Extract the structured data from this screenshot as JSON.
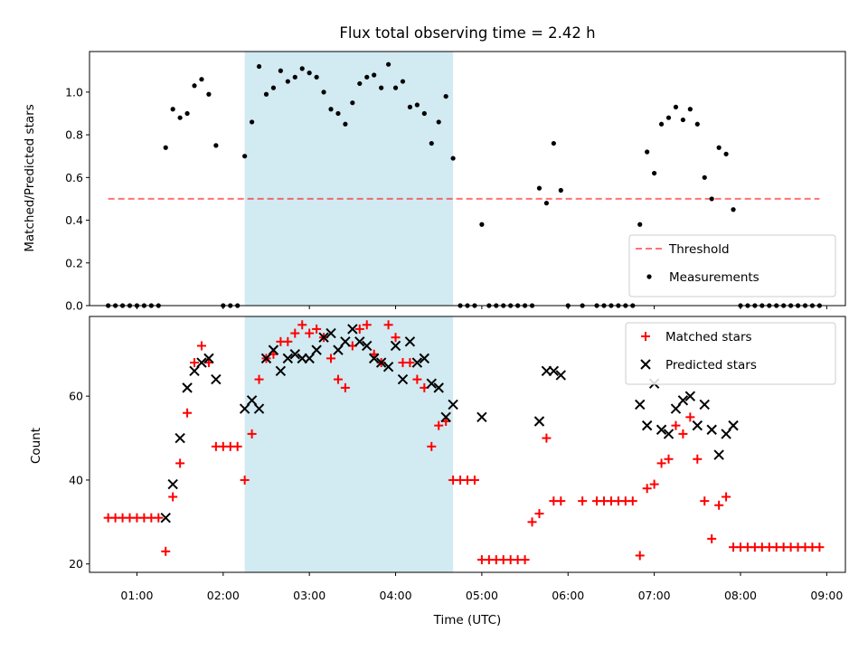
{
  "chart_data": [
    {
      "type": "scatter",
      "title": "Flux total observing time = 2.42 h",
      "xlabel": "",
      "ylabel": "Matched/Predicted stars",
      "xlim": [
        "00:27",
        "09:13"
      ],
      "ylim": [
        0,
        1.19
      ],
      "yticks": [
        0.0,
        0.2,
        0.4,
        0.6,
        0.8,
        1.0
      ],
      "ytick_labels": [
        "0.0",
        "0.2",
        "0.4",
        "0.6",
        "0.8",
        "1.0"
      ],
      "shaded_region": [
        "02:15",
        "04:40"
      ],
      "shade_color": "#add8e6",
      "legend_position": "lower right",
      "series": [
        {
          "name": "Threshold",
          "kind": "dashed-line",
          "color": "#ff0000",
          "points": [
            [
              "00:40",
              0.5
            ],
            [
              "08:55",
              0.5
            ]
          ]
        },
        {
          "name": "Measurements",
          "kind": "dot",
          "color": "#000000",
          "points": [
            [
              "00:40",
              0.0
            ],
            [
              "00:45",
              0.0
            ],
            [
              "00:50",
              0.0
            ],
            [
              "00:55",
              0.0
            ],
            [
              "01:00",
              0.0
            ],
            [
              "01:05",
              0.0
            ],
            [
              "01:10",
              0.0
            ],
            [
              "01:15",
              0.0
            ],
            [
              "01:20",
              0.74
            ],
            [
              "01:25",
              0.92
            ],
            [
              "01:30",
              0.88
            ],
            [
              "01:35",
              0.9
            ],
            [
              "01:40",
              1.03
            ],
            [
              "01:45",
              1.06
            ],
            [
              "01:50",
              0.99
            ],
            [
              "01:55",
              0.75
            ],
            [
              "02:00",
              0.0
            ],
            [
              "02:05",
              0.0
            ],
            [
              "02:10",
              0.0
            ],
            [
              "02:15",
              0.7
            ],
            [
              "02:20",
              0.86
            ],
            [
              "02:25",
              1.12
            ],
            [
              "02:30",
              0.99
            ],
            [
              "02:35",
              1.02
            ],
            [
              "02:40",
              1.1
            ],
            [
              "02:45",
              1.05
            ],
            [
              "02:50",
              1.07
            ],
            [
              "02:55",
              1.11
            ],
            [
              "03:00",
              1.09
            ],
            [
              "03:05",
              1.07
            ],
            [
              "03:10",
              1.0
            ],
            [
              "03:15",
              0.92
            ],
            [
              "03:20",
              0.9
            ],
            [
              "03:25",
              0.85
            ],
            [
              "03:30",
              0.95
            ],
            [
              "03:35",
              1.04
            ],
            [
              "03:40",
              1.07
            ],
            [
              "03:45",
              1.08
            ],
            [
              "03:50",
              1.02
            ],
            [
              "03:55",
              1.13
            ],
            [
              "04:00",
              1.02
            ],
            [
              "04:05",
              1.05
            ],
            [
              "04:10",
              0.93
            ],
            [
              "04:15",
              0.94
            ],
            [
              "04:20",
              0.9
            ],
            [
              "04:25",
              0.76
            ],
            [
              "04:30",
              0.86
            ],
            [
              "04:35",
              0.98
            ],
            [
              "04:40",
              0.69
            ],
            [
              "04:45",
              0.0
            ],
            [
              "04:50",
              0.0
            ],
            [
              "04:55",
              0.0
            ],
            [
              "05:00",
              0.38
            ],
            [
              "05:05",
              0.0
            ],
            [
              "05:10",
              0.0
            ],
            [
              "05:15",
              0.0
            ],
            [
              "05:20",
              0.0
            ],
            [
              "05:25",
              0.0
            ],
            [
              "05:30",
              0.0
            ],
            [
              "05:35",
              0.0
            ],
            [
              "05:40",
              0.55
            ],
            [
              "05:45",
              0.48
            ],
            [
              "05:50",
              0.76
            ],
            [
              "05:55",
              0.54
            ],
            [
              "06:00",
              0.0
            ],
            [
              "06:10",
              0.0
            ],
            [
              "06:20",
              0.0
            ],
            [
              "06:25",
              0.0
            ],
            [
              "06:30",
              0.0
            ],
            [
              "06:35",
              0.0
            ],
            [
              "06:40",
              0.0
            ],
            [
              "06:45",
              0.0
            ],
            [
              "06:50",
              0.38
            ],
            [
              "06:55",
              0.72
            ],
            [
              "07:00",
              0.62
            ],
            [
              "07:05",
              0.85
            ],
            [
              "07:10",
              0.88
            ],
            [
              "07:15",
              0.93
            ],
            [
              "07:20",
              0.87
            ],
            [
              "07:25",
              0.92
            ],
            [
              "07:30",
              0.85
            ],
            [
              "07:35",
              0.6
            ],
            [
              "07:40",
              0.5
            ],
            [
              "07:45",
              0.74
            ],
            [
              "07:50",
              0.71
            ],
            [
              "07:55",
              0.45
            ],
            [
              "08:00",
              0.0
            ],
            [
              "08:05",
              0.0
            ],
            [
              "08:10",
              0.0
            ],
            [
              "08:15",
              0.0
            ],
            [
              "08:20",
              0.0
            ],
            [
              "08:25",
              0.0
            ],
            [
              "08:30",
              0.0
            ],
            [
              "08:35",
              0.0
            ],
            [
              "08:40",
              0.0
            ],
            [
              "08:45",
              0.0
            ],
            [
              "08:50",
              0.0
            ],
            [
              "08:55",
              0.0
            ]
          ]
        }
      ]
    },
    {
      "type": "scatter",
      "title": "",
      "xlabel": "Time (UTC)",
      "ylabel": "Count",
      "xlim": [
        "00:27",
        "09:13"
      ],
      "ylim": [
        18,
        79
      ],
      "xticks": [
        "01:00",
        "02:00",
        "03:00",
        "04:00",
        "05:00",
        "06:00",
        "07:00",
        "08:00",
        "09:00"
      ],
      "yticks": [
        20,
        40,
        60
      ],
      "ytick_labels": [
        "20",
        "40",
        "60"
      ],
      "shaded_region": [
        "02:15",
        "04:40"
      ],
      "shade_color": "#add8e6",
      "legend_position": "upper right",
      "series": [
        {
          "name": "Matched stars",
          "marker": "+",
          "color": "#ff0000",
          "points": [
            [
              "00:40",
              31
            ],
            [
              "00:45",
              31
            ],
            [
              "00:50",
              31
            ],
            [
              "00:55",
              31
            ],
            [
              "01:00",
              31
            ],
            [
              "01:05",
              31
            ],
            [
              "01:10",
              31
            ],
            [
              "01:15",
              31
            ],
            [
              "01:20",
              23
            ],
            [
              "01:25",
              36
            ],
            [
              "01:30",
              44
            ],
            [
              "01:35",
              56
            ],
            [
              "01:40",
              68
            ],
            [
              "01:45",
              72
            ],
            [
              "01:50",
              68
            ],
            [
              "01:55",
              48
            ],
            [
              "02:00",
              48
            ],
            [
              "02:05",
              48
            ],
            [
              "02:10",
              48
            ],
            [
              "02:15",
              40
            ],
            [
              "02:20",
              51
            ],
            [
              "02:25",
              64
            ],
            [
              "02:30",
              69
            ],
            [
              "02:35",
              70
            ],
            [
              "02:40",
              73
            ],
            [
              "02:45",
              73
            ],
            [
              "02:50",
              75
            ],
            [
              "02:55",
              77
            ],
            [
              "03:00",
              75
            ],
            [
              "03:05",
              76
            ],
            [
              "03:10",
              74
            ],
            [
              "03:15",
              69
            ],
            [
              "03:20",
              64
            ],
            [
              "03:25",
              62
            ],
            [
              "03:30",
              72
            ],
            [
              "03:35",
              76
            ],
            [
              "03:40",
              77
            ],
            [
              "03:45",
              70
            ],
            [
              "03:50",
              68
            ],
            [
              "03:55",
              77
            ],
            [
              "04:00",
              74
            ],
            [
              "04:05",
              68
            ],
            [
              "04:10",
              68
            ],
            [
              "04:15",
              64
            ],
            [
              "04:20",
              62
            ],
            [
              "04:25",
              48
            ],
            [
              "04:30",
              53
            ],
            [
              "04:35",
              54
            ],
            [
              "04:40",
              40
            ],
            [
              "04:45",
              40
            ],
            [
              "04:50",
              40
            ],
            [
              "04:55",
              40
            ],
            [
              "05:00",
              21
            ],
            [
              "05:05",
              21
            ],
            [
              "05:10",
              21
            ],
            [
              "05:15",
              21
            ],
            [
              "05:20",
              21
            ],
            [
              "05:25",
              21
            ],
            [
              "05:30",
              21
            ],
            [
              "05:35",
              30
            ],
            [
              "05:40",
              32
            ],
            [
              "05:45",
              50
            ],
            [
              "05:50",
              35
            ],
            [
              "05:55",
              35
            ],
            [
              "06:10",
              35
            ],
            [
              "06:20",
              35
            ],
            [
              "06:25",
              35
            ],
            [
              "06:30",
              35
            ],
            [
              "06:35",
              35
            ],
            [
              "06:40",
              35
            ],
            [
              "06:45",
              35
            ],
            [
              "06:50",
              22
            ],
            [
              "06:55",
              38
            ],
            [
              "07:00",
              39
            ],
            [
              "07:05",
              44
            ],
            [
              "07:10",
              45
            ],
            [
              "07:15",
              53
            ],
            [
              "07:20",
              51
            ],
            [
              "07:25",
              55
            ],
            [
              "07:30",
              45
            ],
            [
              "07:35",
              35
            ],
            [
              "07:40",
              26
            ],
            [
              "07:45",
              34
            ],
            [
              "07:50",
              36
            ],
            [
              "07:55",
              24
            ],
            [
              "08:00",
              24
            ],
            [
              "08:05",
              24
            ],
            [
              "08:10",
              24
            ],
            [
              "08:15",
              24
            ],
            [
              "08:20",
              24
            ],
            [
              "08:25",
              24
            ],
            [
              "08:30",
              24
            ],
            [
              "08:35",
              24
            ],
            [
              "08:40",
              24
            ],
            [
              "08:45",
              24
            ],
            [
              "08:50",
              24
            ],
            [
              "08:55",
              24
            ]
          ]
        },
        {
          "name": "Predicted stars",
          "marker": "x",
          "color": "#000000",
          "points": [
            [
              "01:20",
              31
            ],
            [
              "01:25",
              39
            ],
            [
              "01:30",
              50
            ],
            [
              "01:35",
              62
            ],
            [
              "01:40",
              66
            ],
            [
              "01:45",
              68
            ],
            [
              "01:50",
              69
            ],
            [
              "01:55",
              64
            ],
            [
              "02:15",
              57
            ],
            [
              "02:20",
              59
            ],
            [
              "02:25",
              57
            ],
            [
              "02:30",
              69
            ],
            [
              "02:35",
              71
            ],
            [
              "02:40",
              66
            ],
            [
              "02:45",
              69
            ],
            [
              "02:50",
              70
            ],
            [
              "02:55",
              69
            ],
            [
              "03:00",
              69
            ],
            [
              "03:05",
              71
            ],
            [
              "03:10",
              74
            ],
            [
              "03:15",
              75
            ],
            [
              "03:20",
              71
            ],
            [
              "03:25",
              73
            ],
            [
              "03:30",
              76
            ],
            [
              "03:35",
              73
            ],
            [
              "03:40",
              72
            ],
            [
              "03:45",
              69
            ],
            [
              "03:50",
              68
            ],
            [
              "03:55",
              67
            ],
            [
              "04:00",
              72
            ],
            [
              "04:05",
              64
            ],
            [
              "04:10",
              73
            ],
            [
              "04:15",
              68
            ],
            [
              "04:20",
              69
            ],
            [
              "04:25",
              63
            ],
            [
              "04:30",
              62
            ],
            [
              "04:35",
              55
            ],
            [
              "04:40",
              58
            ],
            [
              "05:00",
              55
            ],
            [
              "05:40",
              54
            ],
            [
              "05:45",
              66
            ],
            [
              "05:50",
              66
            ],
            [
              "05:55",
              65
            ],
            [
              "06:50",
              58
            ],
            [
              "06:55",
              53
            ],
            [
              "07:00",
              63
            ],
            [
              "07:05",
              52
            ],
            [
              "07:10",
              51
            ],
            [
              "07:15",
              57
            ],
            [
              "07:20",
              59
            ],
            [
              "07:25",
              60
            ],
            [
              "07:30",
              53
            ],
            [
              "07:35",
              58
            ],
            [
              "07:40",
              52
            ],
            [
              "07:45",
              46
            ],
            [
              "07:50",
              51
            ],
            [
              "07:55",
              53
            ]
          ]
        }
      ]
    }
  ]
}
